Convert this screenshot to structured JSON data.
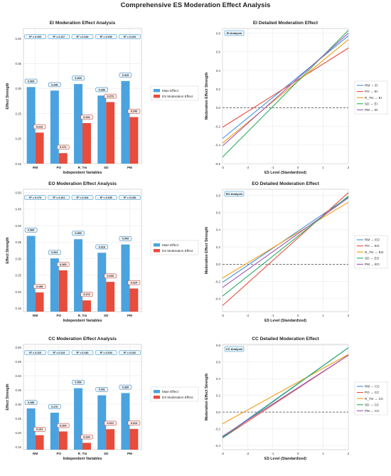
{
  "title": "Comprehensive ES Moderation Effect Analysis",
  "colors": {
    "main": "#4aa3df",
    "es": "#e74c3c",
    "RM": "#3f8fd8",
    "PO": "#e74c3c",
    "R_Tm": "#f39c12",
    "SD": "#27ae60",
    "PM": "#9b59b6",
    "ref": "#444444",
    "grid": "#e6e6e6"
  },
  "chart_data": [
    {
      "type": "bar",
      "title": "EI Moderation Effect Analysis",
      "xlabel": "Independent Variables",
      "ylabel": "Effect Strength",
      "categories": [
        "RM",
        "PO",
        "R_Tm",
        "SD",
        "PM"
      ],
      "ylim": [
        0.15,
        0.42
      ],
      "yticks": [
        "0.15",
        "0.20",
        "0.25",
        "0.30",
        "0.35",
        "0.40"
      ],
      "series": [
        {
          "name": "Main Effect",
          "values": [
            0.303,
            0.296,
            0.309,
            0.286,
            0.315
          ]
        },
        {
          "name": "ES Moderation Effect",
          "values": [
            0.212,
            0.171,
            0.231,
            0.273,
            0.243
          ]
        }
      ],
      "r2": [
        "R² = 0.100",
        "R² = 0.117",
        "R² = 0.144",
        "R² = 0.106",
        "R² = 0.104"
      ],
      "legend": "center-right"
    },
    {
      "type": "line",
      "title": "EI Detailed Moderation Effect",
      "xlabel": "ES Level (Standardized)",
      "ylabel": "Moderation Effect Strength",
      "box_label": "EI Analysis",
      "xlim": [
        -3,
        2
      ],
      "ylim": [
        -0.6,
        0.85
      ],
      "xticks": [
        "-3",
        "-2",
        "-1",
        "0",
        "1",
        "2"
      ],
      "yticks": [
        "-0.6",
        "-0.4",
        "-0.2",
        "0.0",
        "0.2",
        "0.4",
        "0.6",
        "0.8"
      ],
      "reference_y": 0.0,
      "series": [
        {
          "name": "RM → EI",
          "x": [
            -3,
            2
          ],
          "y": [
            -0.33,
            0.77
          ]
        },
        {
          "name": "PO → EI",
          "x": [
            -3,
            2
          ],
          "y": [
            -0.21,
            0.64
          ]
        },
        {
          "name": "R_Tm → EI",
          "x": [
            -3,
            2
          ],
          "y": [
            -0.38,
            0.73
          ]
        },
        {
          "name": "SD → EI",
          "x": [
            -3,
            2
          ],
          "y": [
            -0.53,
            0.83
          ]
        },
        {
          "name": "PM → EI",
          "x": [
            -3,
            2
          ],
          "y": [
            -0.41,
            0.8
          ]
        }
      ],
      "legend": "center-right"
    },
    {
      "type": "bar",
      "title": "EO Moderation Effect Analysis",
      "xlabel": "Independent Variables",
      "ylabel": "Effect Strength",
      "categories": [
        "RM",
        "PO",
        "R_Tm",
        "SD",
        "PM"
      ],
      "ylim": [
        0.14,
        0.51
      ],
      "yticks": [
        "0.15",
        "0.20",
        "0.25",
        "0.30",
        "0.35",
        "0.40",
        "0.45",
        "0.50"
      ],
      "series": [
        {
          "name": "Main Effect",
          "values": [
            0.369,
            0.301,
            0.359,
            0.318,
            0.343
          ]
        },
        {
          "name": "ES Moderation Effect",
          "values": [
            0.198,
            0.265,
            0.174,
            0.23,
            0.21
          ]
        }
      ],
      "r2": [
        "R² = 0.176",
        "R² = 0.161",
        "R² = 0.104",
        "R² = 0.155",
        "R² = 0.108"
      ],
      "legend": "center-right"
    },
    {
      "type": "line",
      "title": "EO Detailed Moderation Effect",
      "xlabel": "ES Level (Standardized)",
      "ylabel": "Moderation Effect Strength",
      "box_label": "EO Analysis",
      "xlim": [
        -3,
        2
      ],
      "ylim": [
        -0.55,
        0.87
      ],
      "xticks": [
        "-3",
        "-2",
        "-1",
        "0",
        "1",
        "2"
      ],
      "yticks": [
        "-0.4",
        "-0.2",
        "0.0",
        "0.2",
        "0.4",
        "0.6",
        "0.8"
      ],
      "reference_y": 0.0,
      "series": [
        {
          "name": "RM → EO",
          "x": [
            -3,
            2
          ],
          "y": [
            -0.21,
            0.78
          ]
        },
        {
          "name": "PO → EO",
          "x": [
            -3,
            2
          ],
          "y": [
            -0.48,
            0.83
          ]
        },
        {
          "name": "R_Tm → EO",
          "x": [
            -3,
            2
          ],
          "y": [
            -0.16,
            0.72
          ]
        },
        {
          "name": "SD → EO",
          "x": [
            -3,
            2
          ],
          "y": [
            -0.37,
            0.79
          ]
        },
        {
          "name": "PM → EO",
          "x": [
            -3,
            2
          ],
          "y": [
            -0.27,
            0.77
          ]
        }
      ],
      "legend": "center-right"
    },
    {
      "type": "bar",
      "title": "CC Moderation Effect Analysis",
      "xlabel": "Independent Variables",
      "ylabel": "Effect Strength",
      "categories": [
        "RM",
        "PO",
        "R_Tm",
        "SD",
        "PM"
      ],
      "ylim": [
        0.14,
        0.51
      ],
      "yticks": [
        "0.15",
        "0.20",
        "0.25",
        "0.30",
        "0.35",
        "0.40",
        "0.45",
        "0.50"
      ],
      "series": [
        {
          "name": "Main Effect",
          "values": [
            0.285,
            0.27,
            0.356,
            0.331,
            0.339
          ]
        },
        {
          "name": "ES Moderation Effect",
          "values": [
            0.191,
            0.204,
            0.164,
            0.212,
            0.213
          ]
        }
      ],
      "r2": [
        "R² = 0.116",
        "R² = 0.114",
        "R² = 0.140",
        "R² = 0.104",
        "R² = 0.102"
      ],
      "legend": "center-right"
    },
    {
      "type": "line",
      "title": "CC Detailed Moderation Effect",
      "xlabel": "ES Level (Standardized)",
      "ylabel": "Moderation Effect Strength",
      "box_label": "CC Analysis",
      "xlim": [
        -3,
        2
      ],
      "ylim": [
        -0.45,
        0.81
      ],
      "xticks": [
        "-3",
        "-2",
        "-1",
        "0",
        "1",
        "2"
      ],
      "yticks": [
        "-0.4",
        "-0.2",
        "0.0",
        "0.2",
        "0.4",
        "0.6",
        "0.8"
      ],
      "reference_y": 0.0,
      "series": [
        {
          "name": "RM → CC",
          "x": [
            -3,
            2
          ],
          "y": [
            -0.3,
            0.77
          ]
        },
        {
          "name": "PO → CC",
          "x": [
            -3,
            2
          ],
          "y": [
            -0.31,
            0.68
          ]
        },
        {
          "name": "R_Tm → CC",
          "x": [
            -3,
            2
          ],
          "y": [
            -0.14,
            0.69
          ]
        },
        {
          "name": "SD → CC",
          "x": [
            -3,
            2
          ],
          "y": [
            -0.31,
            0.77
          ]
        },
        {
          "name": "PM → CC",
          "x": [
            -3,
            2
          ],
          "y": [
            -0.29,
            0.68
          ]
        }
      ],
      "legend": "center-right"
    }
  ]
}
